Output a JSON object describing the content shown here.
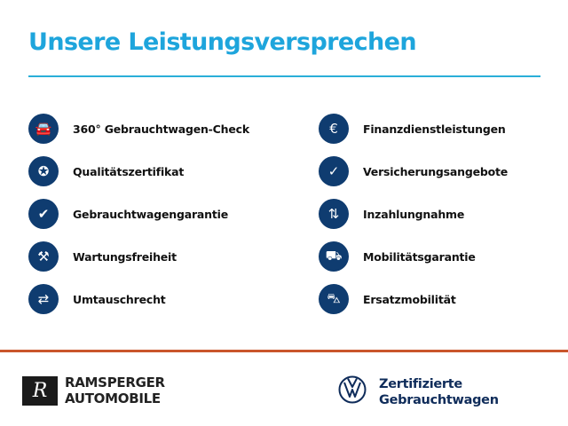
{
  "header": {
    "title": "Unsere Leistungsversprechen"
  },
  "colors": {
    "accent": "#1ea5dc",
    "icon_bg": "#0f3c70",
    "divider": "#c9562c"
  },
  "left_items": [
    {
      "label": "360° Gebrauchtwagen-Check",
      "icon": "car-check-icon",
      "glyph": "🚘"
    },
    {
      "label": "Qualitätszertifikat",
      "icon": "award-badge-icon",
      "glyph": "✪"
    },
    {
      "label": "Gebrauchtwagengarantie",
      "icon": "shield-check-icon",
      "glyph": "✔"
    },
    {
      "label": "Wartungsfreiheit",
      "icon": "wrench-check-icon",
      "glyph": "⚒"
    },
    {
      "label": "Umtauschrecht",
      "icon": "exchange-arrows-icon",
      "glyph": "⇄"
    }
  ],
  "right_items": [
    {
      "label": "Finanzdienstleistungen",
      "icon": "coins-euro-icon",
      "glyph": "€"
    },
    {
      "label": "Versicherungsangebote",
      "icon": "car-insurance-icon",
      "glyph": "✓"
    },
    {
      "label": "Inzahlungnahme",
      "icon": "trade-in-arrows-icon",
      "glyph": "⇅"
    },
    {
      "label": "Mobilitätsgarantie",
      "icon": "tow-truck-icon",
      "glyph": "⛟"
    },
    {
      "label": "Ersatzmobilität",
      "icon": "replacement-car-icon",
      "glyph": "⛍"
    }
  ],
  "footer": {
    "dealer_line1": "RAMSPERGER",
    "dealer_line2": "AUTOMOBILE",
    "dealer_logo_letter": "R",
    "brand_line1": "Zertifizierte",
    "brand_line2": "Gebrauchtwagen"
  }
}
